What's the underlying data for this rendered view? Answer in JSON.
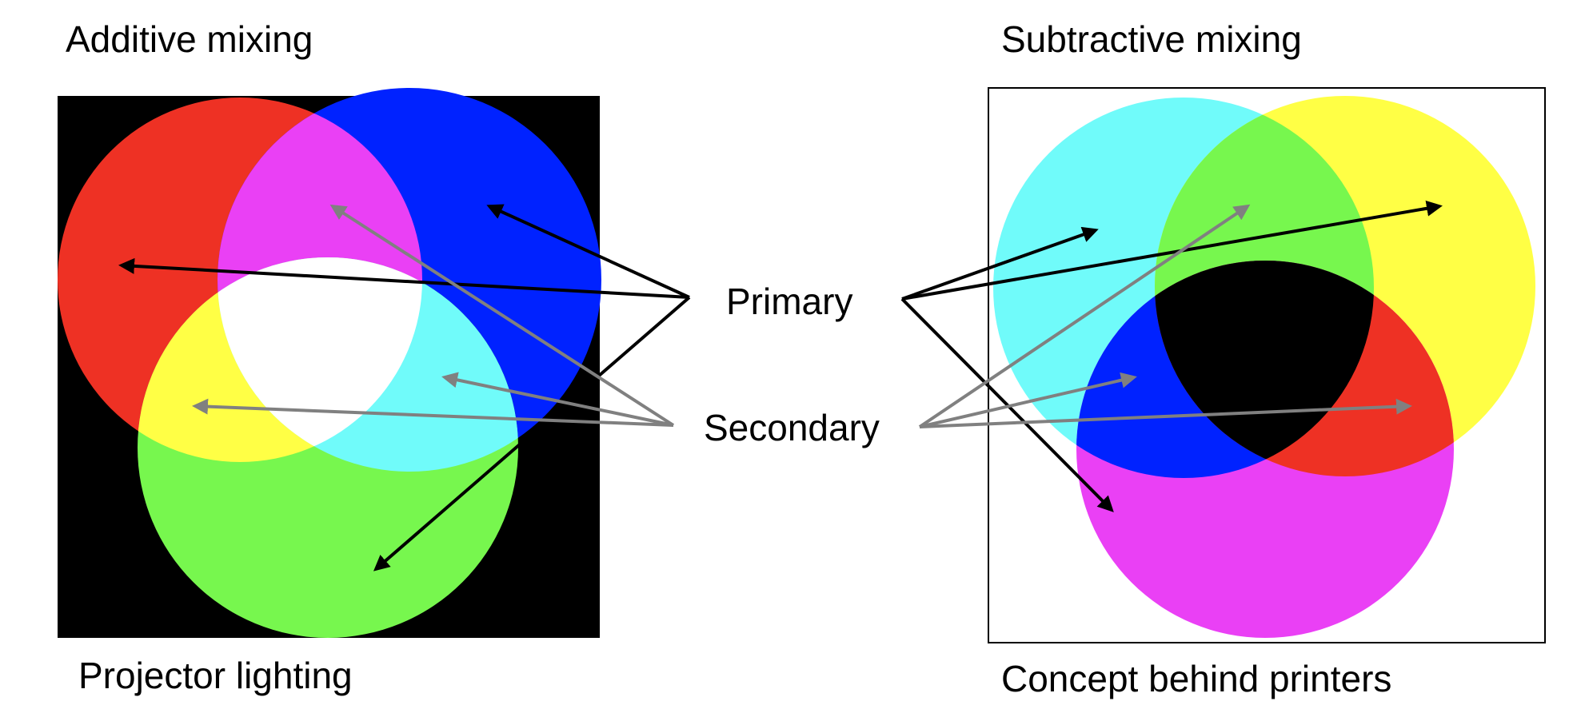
{
  "additive": {
    "title": "Additive mixing",
    "caption": "Projector lighting",
    "colors": {
      "background": "#000000",
      "red": "#ee3124",
      "green": "#77f74e",
      "blue": "#0022ff",
      "magenta": "#ea40f5",
      "yellow": "#ffff45",
      "cyan": "#70fbfa",
      "white": "#ffffff"
    }
  },
  "subtractive": {
    "title": "Subtractive mixing",
    "caption": "Concept behind printers",
    "colors": {
      "background": "#ffffff",
      "frame": "#000000",
      "cyan": "#70fbfa",
      "yellow": "#ffff45",
      "magenta": "#ea40f5",
      "green": "#77f74e",
      "blue": "#0022ff",
      "red": "#ee3124",
      "black": "#000000"
    }
  },
  "labels": {
    "primary": "Primary",
    "secondary": "Secondary"
  },
  "arrows": {
    "primary_color": "#000000",
    "secondary_color": "#808080"
  }
}
